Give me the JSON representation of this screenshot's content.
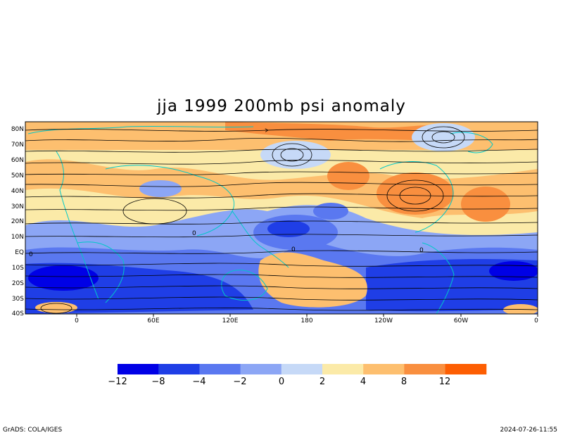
{
  "title": "jja 1999 200mb psi anomaly",
  "lat_labels": [
    "80N",
    "70N",
    "60N",
    "50N",
    "40N",
    "30N",
    "20N",
    "10N",
    "EQ",
    "10S",
    "20S",
    "30S",
    "40S"
  ],
  "lon_labels": [
    "0",
    "60E",
    "120E",
    "180",
    "120W",
    "60W",
    "0"
  ],
  "colorbar": {
    "labels": [
      "−12",
      "−8",
      "−4",
      "−2",
      "0",
      "2",
      "4",
      "8",
      "12"
    ],
    "colors": [
      "#0000e6",
      "#1f3ee6",
      "#5a78f0",
      "#8ca6f5",
      "#c6d9f7",
      "#fbeaa8",
      "#fdbf6f",
      "#f98f3f",
      "#fd5e02"
    ]
  },
  "contour_labels": [
    "0",
    "0",
    "0",
    "0"
  ],
  "footer": {
    "left": "GrADS: COLA/IGES",
    "right": "2024-07-26-11:55"
  },
  "colors": {
    "coastline": "#00c8c8",
    "streamline": "#000000"
  }
}
